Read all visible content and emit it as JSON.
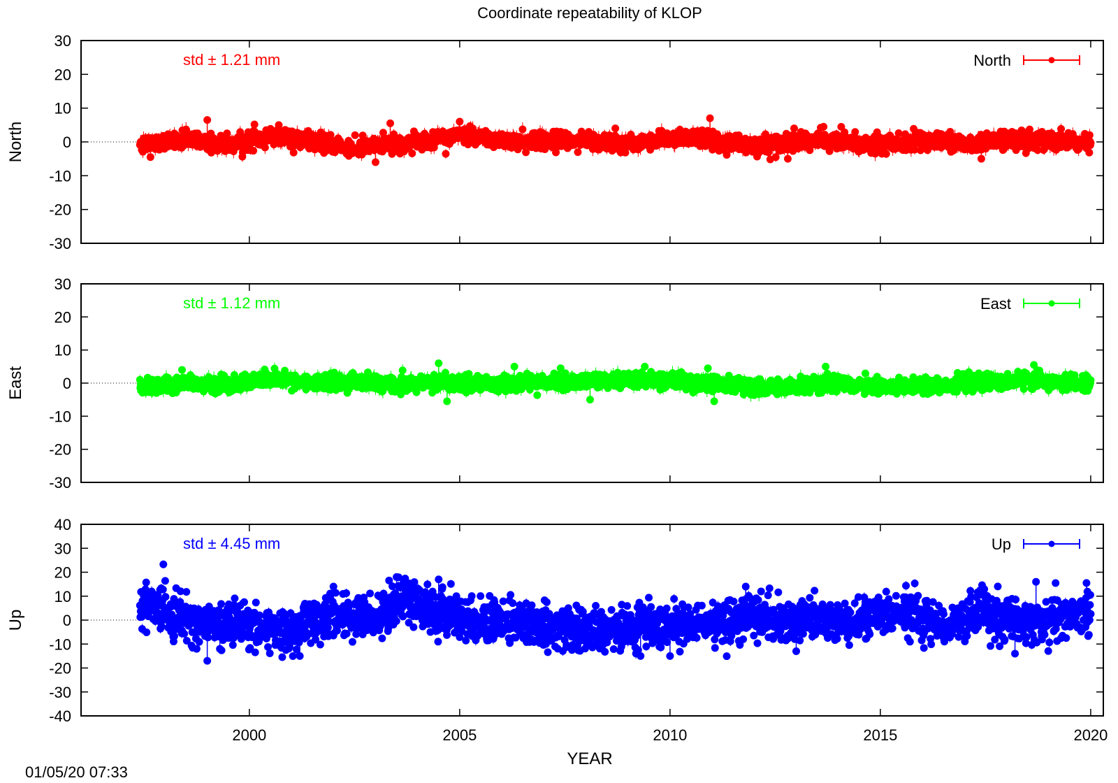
{
  "footer": {
    "timestamp": "01/05/20 07:33"
  },
  "chart_data": {
    "type": "scatter",
    "title": "Coordinate repeatability of KLOP",
    "xlabel": "YEAR",
    "xlim": [
      1996,
      2020.3
    ],
    "xticks": [
      2000,
      2005,
      2010,
      2015,
      2020
    ],
    "grid": false,
    "panels": [
      {
        "name": "North",
        "ylabel": "North",
        "color": "#ff0000",
        "ylim": [
          -30,
          30
        ],
        "yticks": [
          -30,
          -20,
          -10,
          0,
          10,
          20,
          30
        ],
        "std_label": "std ± 1.21 mm",
        "legend_label": "North",
        "legend_position": "top-right",
        "reference_start": 1996,
        "x_range": [
          1997.4,
          2020.0
        ],
        "trend": [
          [
            1997.4,
            -0.5
          ],
          [
            1998.5,
            0.5
          ],
          [
            1999.5,
            -1.0
          ],
          [
            2000.5,
            1.5
          ],
          [
            2001.5,
            0.5
          ],
          [
            2002.5,
            -2.0
          ],
          [
            2003.5,
            -0.5
          ],
          [
            2004.5,
            1.0
          ],
          [
            2005.0,
            2.0
          ],
          [
            2006.0,
            0.3
          ],
          [
            2007.5,
            0.5
          ],
          [
            2009.0,
            -0.5
          ],
          [
            2010.5,
            1.5
          ],
          [
            2011.0,
            0.5
          ],
          [
            2012.0,
            -1.0
          ],
          [
            2013.0,
            0.0
          ],
          [
            2014.0,
            0.5
          ],
          [
            2015.0,
            -0.5
          ],
          [
            2016.0,
            0.5
          ],
          [
            2017.0,
            -0.5
          ],
          [
            2018.0,
            0.5
          ],
          [
            2020.0,
            -0.2
          ]
        ],
        "scatter_sd": 1.21,
        "outliers": [
          [
            1997.65,
            -4.5
          ],
          [
            1999.0,
            6.5
          ],
          [
            2000.7,
            5.0
          ],
          [
            2003.0,
            -6.0
          ],
          [
            2003.35,
            5.5
          ],
          [
            2005.0,
            6.0
          ],
          [
            2008.7,
            4.0
          ],
          [
            2010.95,
            7.0
          ],
          [
            2012.8,
            -5.0
          ],
          [
            2012.95,
            4.0
          ],
          [
            2013.65,
            4.5
          ],
          [
            2017.4,
            -5.0
          ]
        ]
      },
      {
        "name": "East",
        "ylabel": "East",
        "color": "#00ff00",
        "ylim": [
          -30,
          30
        ],
        "yticks": [
          -30,
          -20,
          -10,
          0,
          10,
          20,
          30
        ],
        "std_label": "std ± 1.12 mm",
        "legend_label": "East",
        "legend_position": "top-right",
        "reference_start": 1996,
        "x_range": [
          1997.4,
          2020.0
        ],
        "trend": [
          [
            1997.4,
            -1.5
          ],
          [
            1998.5,
            0.5
          ],
          [
            1999.5,
            -0.5
          ],
          [
            2000.5,
            1.5
          ],
          [
            2001.5,
            0.0
          ],
          [
            2002.5,
            0.5
          ],
          [
            2003.5,
            -0.5
          ],
          [
            2004.5,
            0.0
          ],
          [
            2006.0,
            0.0
          ],
          [
            2007.5,
            0.3
          ],
          [
            2009.0,
            1.0
          ],
          [
            2010.5,
            0.5
          ],
          [
            2011.5,
            -0.5
          ],
          [
            2012.5,
            -1.5
          ],
          [
            2013.5,
            0.0
          ],
          [
            2015.0,
            -1.0
          ],
          [
            2016.5,
            -0.5
          ],
          [
            2018.5,
            1.0
          ],
          [
            2020.0,
            -0.5
          ]
        ],
        "scatter_sd": 1.12,
        "outliers": [
          [
            1998.4,
            4.0
          ],
          [
            2004.5,
            6.0
          ],
          [
            2004.7,
            -5.5
          ],
          [
            2006.3,
            5.0
          ],
          [
            2007.4,
            4.5
          ],
          [
            2008.1,
            -5.0
          ],
          [
            2009.4,
            5.0
          ],
          [
            2010.9,
            4.5
          ],
          [
            2011.05,
            -5.5
          ],
          [
            2013.7,
            5.0
          ],
          [
            2018.65,
            5.5
          ]
        ]
      },
      {
        "name": "Up",
        "ylabel": "Up",
        "color": "#0000ff",
        "ylim": [
          -40,
          40
        ],
        "yticks": [
          -40,
          -30,
          -20,
          -10,
          0,
          10,
          20,
          30,
          40
        ],
        "std_label": "std ± 4.45 mm",
        "legend_label": "Up",
        "legend_position": "top-right",
        "reference_start": 1996,
        "x_range": [
          1997.4,
          2020.0
        ],
        "trend": [
          [
            1997.4,
            7.0
          ],
          [
            1998.0,
            4.0
          ],
          [
            1999.0,
            -1.0
          ],
          [
            2000.0,
            -3.0
          ],
          [
            2001.0,
            -6.0
          ],
          [
            2001.5,
            1.0
          ],
          [
            2002.5,
            2.0
          ],
          [
            2003.0,
            1.0
          ],
          [
            2003.7,
            9.0
          ],
          [
            2004.5,
            3.0
          ],
          [
            2005.5,
            0.0
          ],
          [
            2007.0,
            -3.0
          ],
          [
            2008.5,
            -4.0
          ],
          [
            2010.0,
            -3.0
          ],
          [
            2011.0,
            -1.0
          ],
          [
            2012.0,
            1.0
          ],
          [
            2013.0,
            0.0
          ],
          [
            2014.5,
            -1.0
          ],
          [
            2015.5,
            4.0
          ],
          [
            2016.5,
            -2.0
          ],
          [
            2017.5,
            2.0
          ],
          [
            2018.5,
            -1.0
          ],
          [
            2020.0,
            3.0
          ]
        ],
        "scatter_sd": 4.45,
        "outliers": [
          [
            1999.0,
            -17.0
          ],
          [
            1999.3,
            -12.0
          ],
          [
            2003.5,
            18.0
          ],
          [
            2004.5,
            17.0
          ],
          [
            2009.3,
            -15.0
          ],
          [
            2010.0,
            -15.0
          ],
          [
            2013.0,
            -13.0
          ],
          [
            2018.2,
            -14.0
          ],
          [
            2018.7,
            16.0
          ],
          [
            2019.9,
            15.5
          ],
          [
            2001.2,
            -15.0
          ],
          [
            2002.0,
            14.0
          ],
          [
            2011.8,
            14.0
          ]
        ]
      }
    ]
  }
}
